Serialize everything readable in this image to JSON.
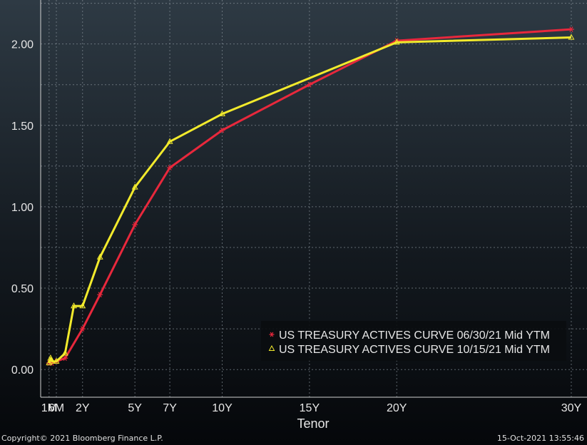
{
  "chart_data": {
    "type": "line",
    "xlabel": "Tenor",
    "ylabel": "",
    "x_ticks": [
      {
        "label": "1M",
        "years": 0.083
      },
      {
        "label": "6M",
        "years": 0.5
      },
      {
        "label": "2Y",
        "years": 2
      },
      {
        "label": "5Y",
        "years": 5
      },
      {
        "label": "7Y",
        "years": 7
      },
      {
        "label": "10Y",
        "years": 10
      },
      {
        "label": "15Y",
        "years": 15
      },
      {
        "label": "20Y",
        "years": 20
      },
      {
        "label": "30Y",
        "years": 30
      }
    ],
    "y_ticks": [
      "0.00",
      "0.50",
      "1.00",
      "1.50",
      "2.00"
    ],
    "xlim": [
      -0.4,
      30.9
    ],
    "ylim": [
      -0.17,
      2.27
    ],
    "grid": true,
    "legend_position": "bottom-right",
    "series": [
      {
        "name": "US TREASURY ACTIVES CURVE 06/30/21 Mid YTM",
        "color": "#e8283c",
        "marker": "asterisk",
        "x": [
          0.083,
          0.25,
          0.5,
          1,
          2,
          3,
          5,
          7,
          10,
          15,
          20,
          30
        ],
        "y": [
          0.04,
          0.04,
          0.05,
          0.07,
          0.25,
          0.46,
          0.89,
          1.24,
          1.47,
          1.75,
          2.02,
          2.09
        ]
      },
      {
        "name": "US TREASURY ACTIVES CURVE 10/15/21 Mid YTM",
        "color": "#f2ea2c",
        "marker": "triangle",
        "x": [
          0.083,
          0.167,
          0.25,
          0.5,
          1,
          1.5,
          2,
          3,
          5,
          7,
          10,
          20,
          30
        ],
        "y": [
          0.04,
          0.07,
          0.05,
          0.05,
          0.1,
          0.39,
          0.39,
          0.69,
          1.12,
          1.4,
          1.57,
          2.01,
          2.04
        ]
      }
    ]
  },
  "footer": {
    "copyright": "Copyright© 2021 Bloomberg Finance L.P.",
    "timestamp": "15-Oct-2021 13:55:46"
  }
}
